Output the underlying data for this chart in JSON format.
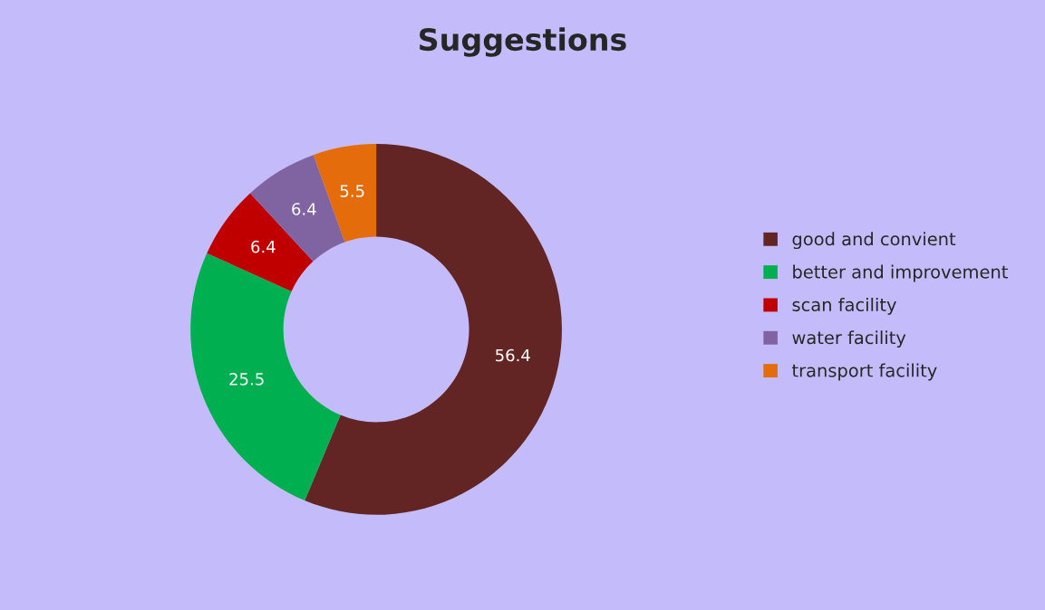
{
  "chart_data": {
    "type": "donut",
    "title": "Suggestions",
    "categories": [
      "good and convient",
      "better and improvement",
      "scan facility",
      "water facility",
      "transport facility"
    ],
    "values": [
      56.4,
      25.5,
      6.4,
      6.4,
      5.5
    ],
    "colors": [
      "#632523",
      "#00b050",
      "#c00000",
      "#8064a2",
      "#e46c0a"
    ],
    "data_labels": true,
    "legend": "right"
  }
}
